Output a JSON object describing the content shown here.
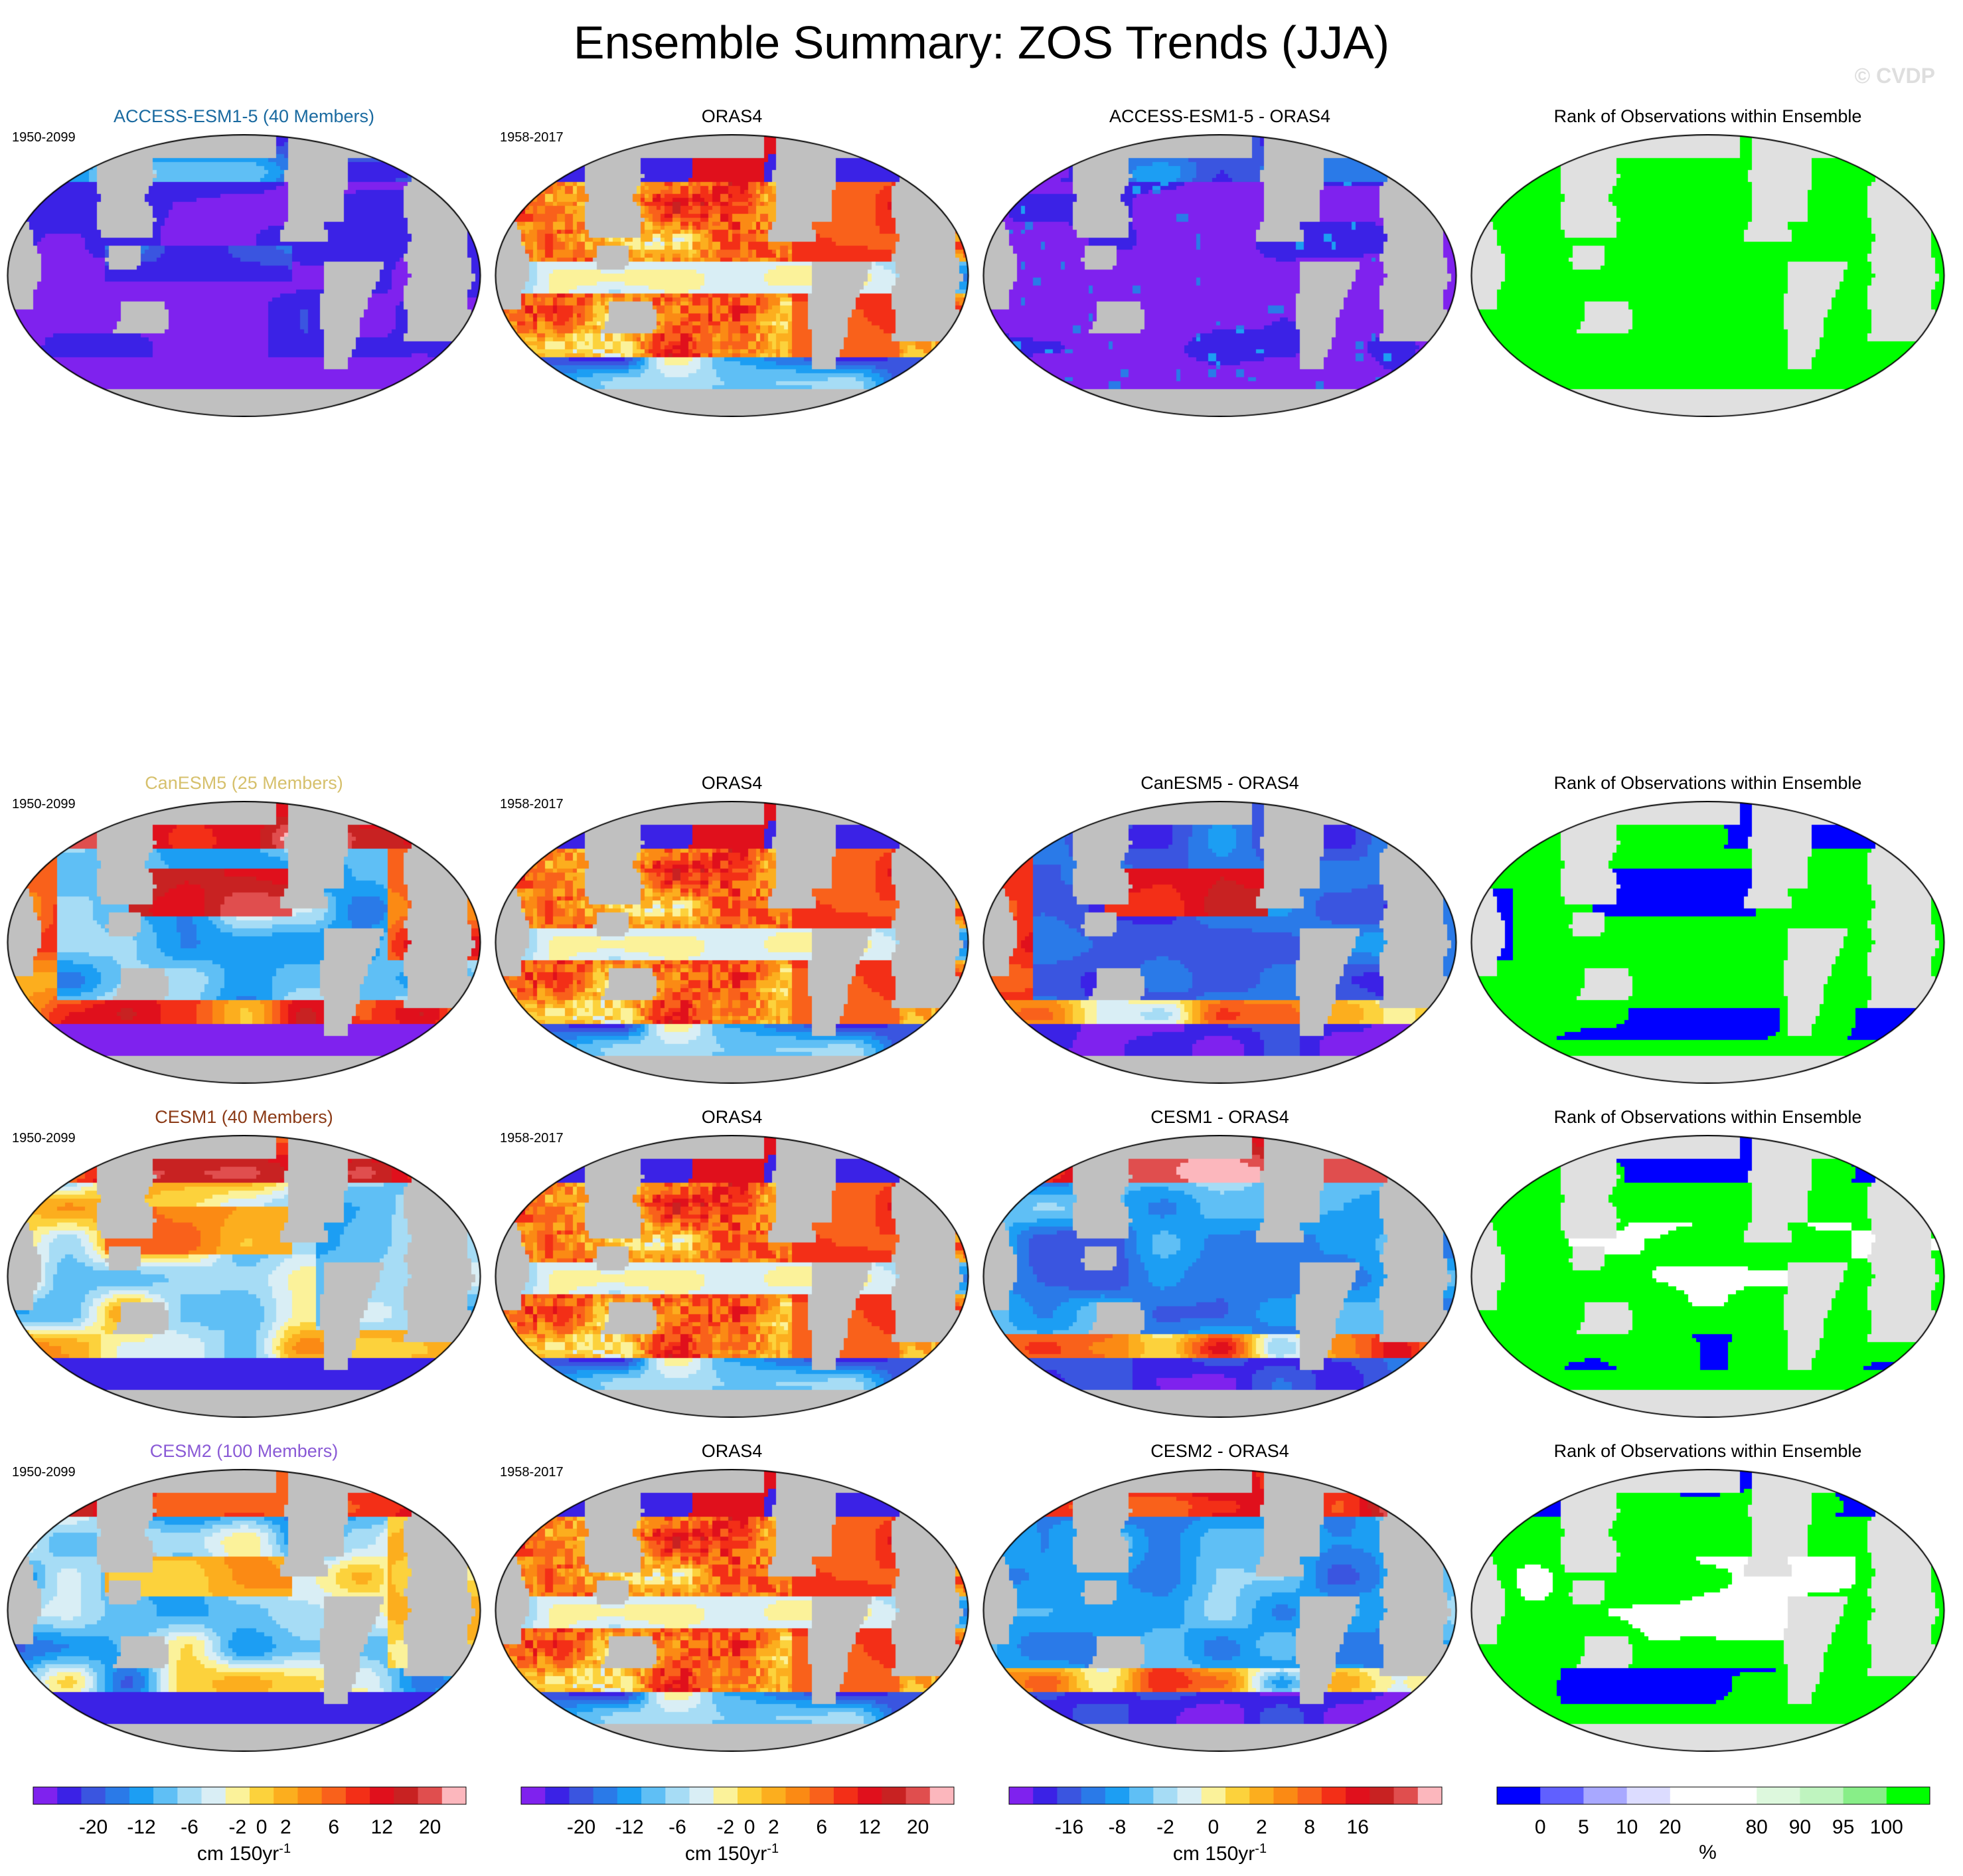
{
  "header": {
    "title": "Ensemble Summary: ZOS Trends (JJA)",
    "watermark": "© CVDP"
  },
  "colors": {
    "trend_scale": [
      "#7f22ee",
      "#3b22e6",
      "#3a55e0",
      "#2a7ae8",
      "#1c9ef3",
      "#5fbff5",
      "#a6dcf5",
      "#d9eef5",
      "#fbf29a",
      "#fcd23c",
      "#fcae1e",
      "#fb8a14",
      "#f9611b",
      "#f32f17",
      "#e0101c",
      "#c82222",
      "#e04e4e",
      "#fcb7bd"
    ],
    "rank_scale": [
      "#0000ff",
      "#6060ff",
      "#a8a8ff",
      "#dcdcff",
      "#ffffff",
      "#ffffff",
      "#ddf8dd",
      "#bff4bf",
      "#88ee88",
      "#00ff00"
    ],
    "land": "#c0c0c0",
    "land_rank": "#e0e0e0",
    "model_title_colors": {
      "ACCESS-ESM1-5": "#1a6aa0",
      "CanESM5": "#d6c06c",
      "CESM1": "#8b3a16",
      "CESM2": "#8a5ad6"
    }
  },
  "rows": [
    {
      "model": "ACCESS-ESM1-5",
      "panels": [
        {
          "title": "ACCESS-ESM1-5 (40 Members)",
          "period": "1950-2099",
          "kind": "trend",
          "pattern": "access"
        },
        {
          "title": "ORAS4",
          "period": "1958-2017",
          "kind": "trend",
          "pattern": "oras"
        },
        {
          "title": "ACCESS-ESM1-5 - ORAS4",
          "period": "",
          "kind": "diff",
          "pattern": "access_diff"
        },
        {
          "title": "Rank of Observations within Ensemble",
          "period": "",
          "kind": "rank",
          "pattern": "access_rank"
        }
      ]
    },
    {
      "model": "CanESM5",
      "panels": [
        {
          "title": "CanESM5 (25 Members)",
          "period": "1950-2099",
          "kind": "trend",
          "pattern": "canesm"
        },
        {
          "title": "ORAS4",
          "period": "1958-2017",
          "kind": "trend",
          "pattern": "oras"
        },
        {
          "title": "CanESM5 - ORAS4",
          "period": "",
          "kind": "diff",
          "pattern": "canesm_diff"
        },
        {
          "title": "Rank of Observations within Ensemble",
          "period": "",
          "kind": "rank",
          "pattern": "canesm_rank"
        }
      ]
    },
    {
      "model": "CESM1",
      "panels": [
        {
          "title": "CESM1 (40 Members)",
          "period": "1950-2099",
          "kind": "trend",
          "pattern": "cesm1"
        },
        {
          "title": "ORAS4",
          "period": "1958-2017",
          "kind": "trend",
          "pattern": "oras"
        },
        {
          "title": "CESM1 - ORAS4",
          "period": "",
          "kind": "diff",
          "pattern": "cesm1_diff"
        },
        {
          "title": "Rank of Observations within Ensemble",
          "period": "",
          "kind": "rank",
          "pattern": "cesm1_rank"
        }
      ]
    },
    {
      "model": "CESM2",
      "panels": [
        {
          "title": "CESM2 (100 Members)",
          "period": "1950-2099",
          "kind": "trend",
          "pattern": "cesm2"
        },
        {
          "title": "ORAS4",
          "period": "1958-2017",
          "kind": "trend",
          "pattern": "oras"
        },
        {
          "title": "CESM2 - ORAS4",
          "period": "",
          "kind": "diff",
          "pattern": "cesm2_diff"
        },
        {
          "title": "Rank of Observations within Ensemble",
          "period": "",
          "kind": "rank",
          "pattern": "cesm2_rank"
        }
      ]
    }
  ],
  "chart_data": {
    "type": "heatmap",
    "projection": "global map (Robinson-like), Pacific-centered",
    "colorbars": [
      {
        "id": "model_trend",
        "unit": "cm 150yr",
        "unit_exp": "-1",
        "tick_labels": [
          "-20",
          "-12",
          "-6",
          "-2",
          "0",
          "2",
          "6",
          "12",
          "20"
        ]
      },
      {
        "id": "obs_trend",
        "unit": "cm 150yr",
        "unit_exp": "-1",
        "tick_labels": [
          "-20",
          "-12",
          "-6",
          "-2",
          "0",
          "2",
          "6",
          "12",
          "20"
        ]
      },
      {
        "id": "difference",
        "unit": "cm 150yr",
        "unit_exp": "-1",
        "tick_labels": [
          "-16",
          "-8",
          "-2",
          "0",
          "2",
          "8",
          "16"
        ]
      },
      {
        "id": "rank",
        "unit": "%",
        "unit_exp": "",
        "tick_labels": [
          "0",
          "5",
          "10",
          "20",
          "80",
          "90",
          "95",
          "100"
        ]
      }
    ]
  }
}
